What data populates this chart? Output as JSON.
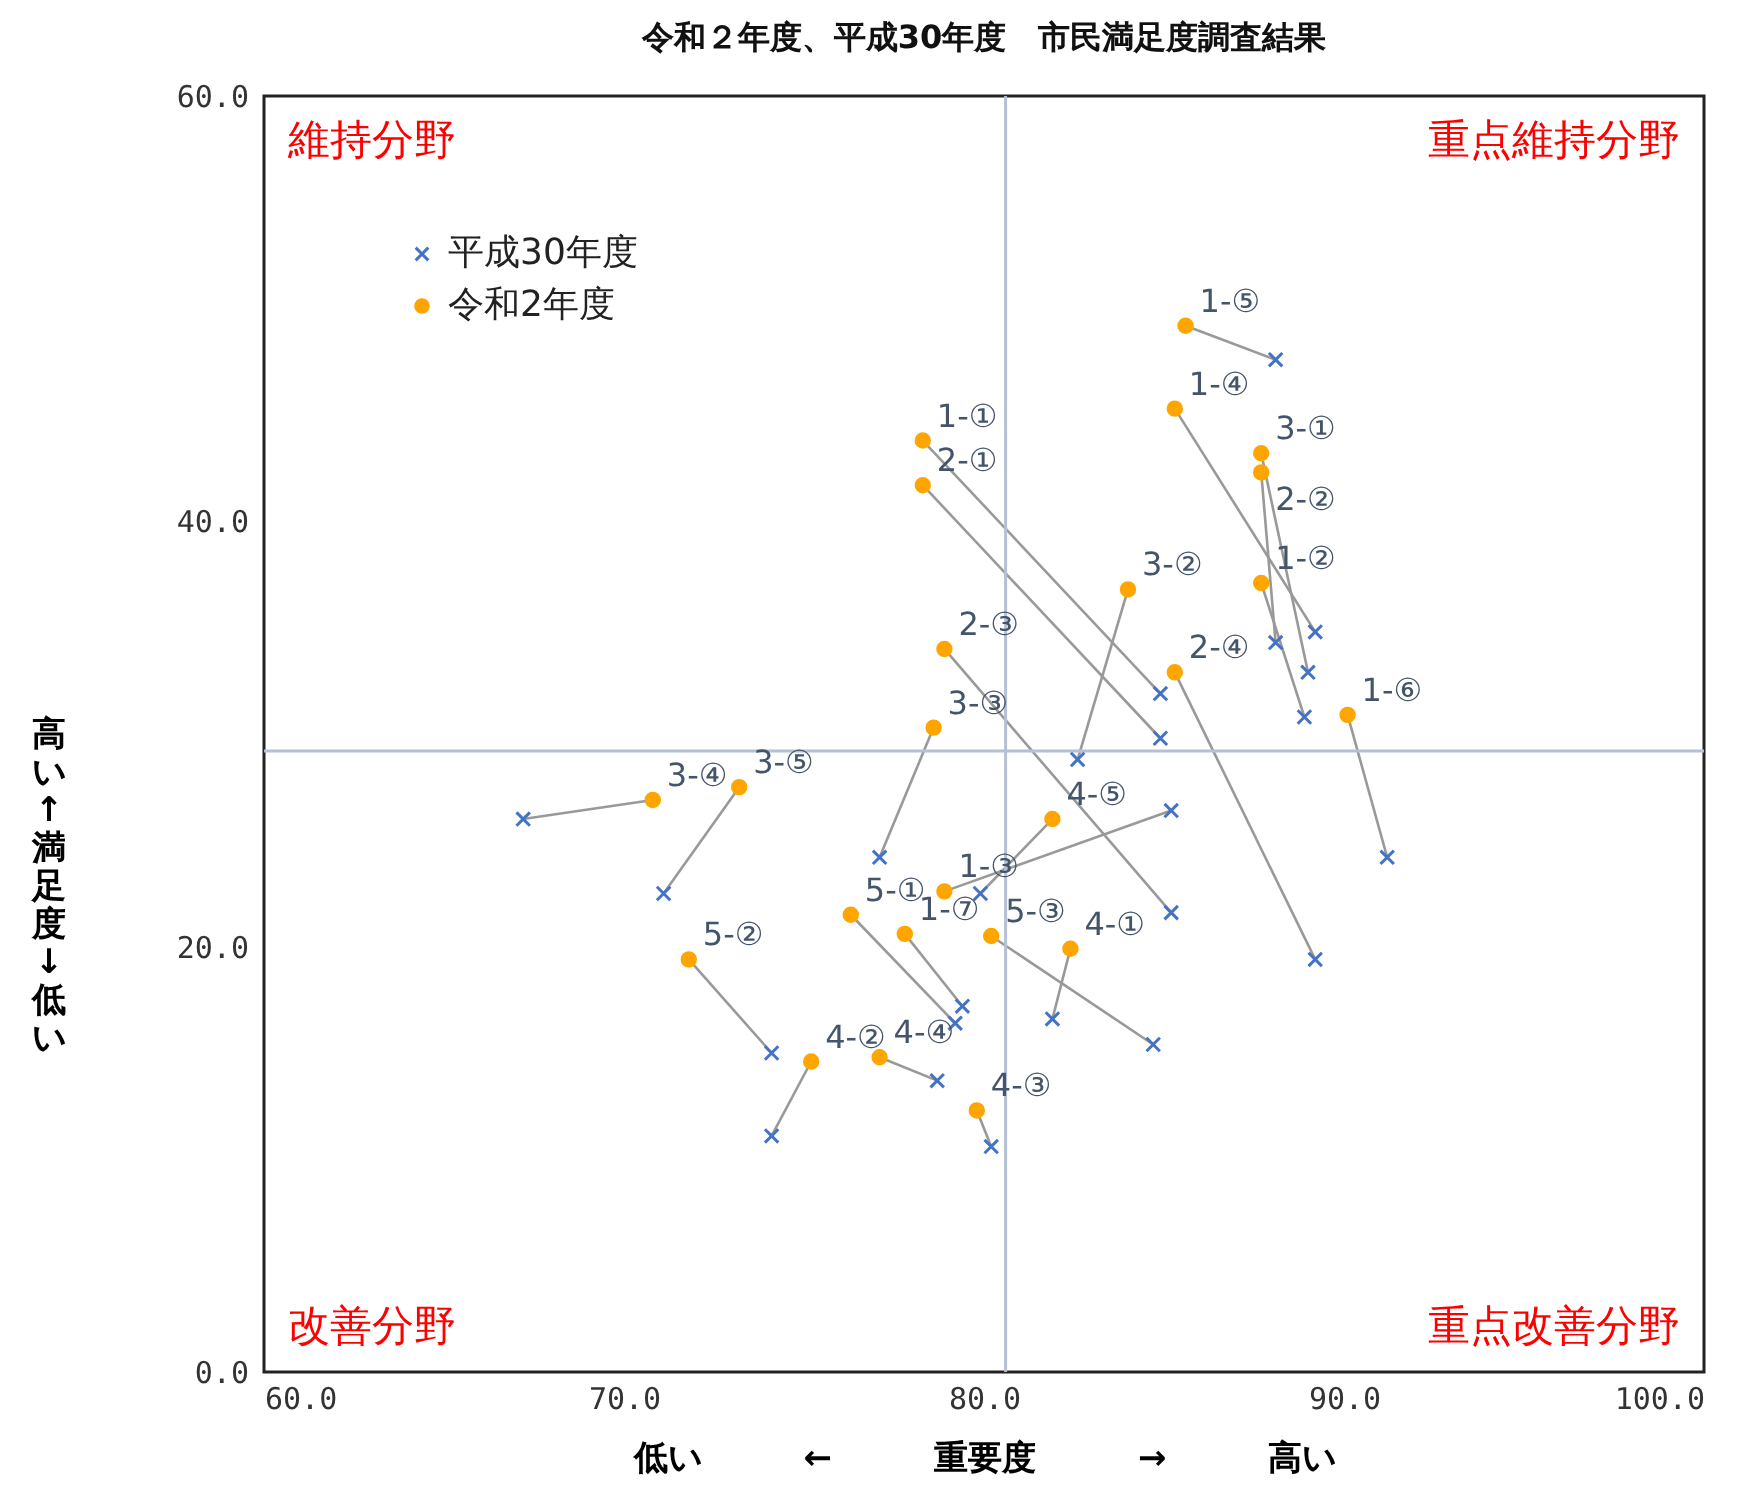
{
  "chart_data": {
    "type": "scatter",
    "title": "令和２年度、平成30年度　市民満足度調査結果",
    "xlabel": "低い ← 重要度 → 高い",
    "ylabel": "高い ↑ 満足度 ↓ 低い",
    "xlim": [
      60,
      100
    ],
    "xticks": [
      {
        "value": 60,
        "label": "60.0"
      },
      {
        "value": 70,
        "label": "70.0"
      },
      {
        "value": 80,
        "label": "80.0"
      },
      {
        "value": 90,
        "label": "90.0"
      },
      {
        "value": 100,
        "label": "100.0"
      }
    ],
    "ylim": [
      0,
      60
    ],
    "yticks": [
      {
        "value": 0,
        "label": "0.0"
      },
      {
        "value": 20,
        "label": "20.0"
      },
      {
        "value": 40,
        "label": "40.0"
      },
      {
        "value": 60,
        "label": "60.0"
      }
    ],
    "grid": false,
    "legend": "top left",
    "series": [
      {
        "name": "平成30年度",
        "color": "#4472c4",
        "marker": "cross",
        "x": [
          84.9,
          88.9,
          85.2,
          89.2,
          88.1,
          91.2,
          79.4,
          84.9,
          88.1,
          85.2,
          89.2,
          89.0,
          82.6,
          77.1,
          67.2,
          71.1,
          81.9,
          74.1,
          80.2,
          78.7,
          79.9,
          79.2,
          74.1,
          84.7
        ],
        "values": [
          31.9,
          30.8,
          26.4,
          34.8,
          47.6,
          24.2,
          17.2,
          29.8,
          34.3,
          21.6,
          19.4,
          32.9,
          28.8,
          24.2,
          26.0,
          22.5,
          16.6,
          11.1,
          10.6,
          13.7,
          22.5,
          16.4,
          15.0,
          15.4
        ]
      },
      {
        "name": "令和2年度",
        "color": "#ffa500",
        "marker": "circle",
        "x": [
          78.3,
          87.7,
          78.9,
          85.3,
          85.6,
          90.1,
          77.8,
          78.3,
          87.7,
          78.9,
          85.3,
          87.7,
          84.0,
          78.6,
          70.8,
          73.2,
          82.4,
          75.2,
          79.8,
          77.1,
          81.9,
          76.3,
          71.8,
          80.2
        ],
        "values": [
          43.8,
          37.1,
          22.6,
          45.3,
          49.2,
          30.9,
          20.6,
          41.7,
          42.3,
          34.0,
          32.9,
          43.2,
          36.8,
          30.3,
          26.9,
          27.5,
          19.9,
          14.6,
          12.3,
          14.8,
          26.0,
          21.5,
          19.4,
          20.5
        ]
      }
    ],
    "ref_lines": [
      {
        "axis": "x",
        "value": 80.6,
        "color": "#b4c0d4"
      },
      {
        "axis": "y",
        "value": 29.2,
        "color": "#b4c0d4"
      }
    ],
    "annotations": [
      "維持分野",
      "重点維持分野",
      "改善分野",
      "重点改善分野",
      {
        "text": "1-①",
        "x": 78.3,
        "y": 43.8
      },
      {
        "text": "1-②",
        "x": 87.7,
        "y": 37.1
      },
      {
        "text": "1-③",
        "x": 78.9,
        "y": 22.6
      },
      {
        "text": "1-④",
        "x": 85.3,
        "y": 45.3
      },
      {
        "text": "1-⑤",
        "x": 85.6,
        "y": 49.2
      },
      {
        "text": "1-⑥",
        "x": 90.1,
        "y": 30.9
      },
      {
        "text": "1-⑦",
        "x": 77.8,
        "y": 20.6
      },
      {
        "text": "2-①",
        "x": 78.3,
        "y": 41.7
      },
      {
        "text": "2-②",
        "x": 87.7,
        "y": 42.3
      },
      {
        "text": "2-③",
        "x": 78.9,
        "y": 34.0
      },
      {
        "text": "2-④",
        "x": 85.3,
        "y": 32.9
      },
      {
        "text": "3-①",
        "x": 87.7,
        "y": 43.2
      },
      {
        "text": "3-②",
        "x": 84.0,
        "y": 36.8
      },
      {
        "text": "3-③",
        "x": 78.6,
        "y": 30.3
      },
      {
        "text": "3-④",
        "x": 70.8,
        "y": 26.9
      },
      {
        "text": "3-⑤",
        "x": 73.2,
        "y": 27.5
      },
      {
        "text": "4-①",
        "x": 82.4,
        "y": 19.9
      },
      {
        "text": "4-②",
        "x": 75.2,
        "y": 14.6
      },
      {
        "text": "4-③",
        "x": 79.8,
        "y": 12.3
      },
      {
        "text": "4-④",
        "x": 77.1,
        "y": 14.8
      },
      {
        "text": "4-⑤",
        "x": 81.9,
        "y": 26.0
      },
      {
        "text": "5-①",
        "x": 76.3,
        "y": 21.5
      },
      {
        "text": "5-②",
        "x": 71.8,
        "y": 19.4
      },
      {
        "text": "5-③",
        "x": 80.2,
        "y": 20.5
      }
    ]
  }
}
